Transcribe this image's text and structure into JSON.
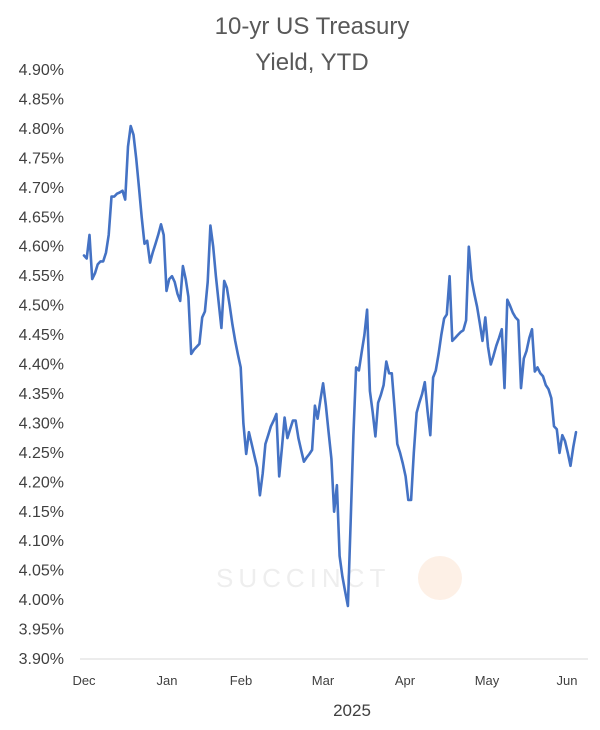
{
  "chart_data": {
    "type": "line",
    "title_line1": "10-yr US Treasury",
    "title_line2": "Yield, YTD",
    "xlabel": "2025",
    "ylabel": "",
    "ylim": [
      3.9,
      4.9
    ],
    "y_ticks": [
      "4.90%",
      "4.85%",
      "4.80%",
      "4.75%",
      "4.70%",
      "4.65%",
      "4.60%",
      "4.55%",
      "4.50%",
      "4.45%",
      "4.40%",
      "4.35%",
      "4.30%",
      "4.25%",
      "4.20%",
      "4.15%",
      "4.10%",
      "4.05%",
      "4.00%",
      "3.95%",
      "3.90%"
    ],
    "x_ticks": [
      "Dec",
      "Jan",
      "Feb",
      "Mar",
      "Apr",
      "May",
      "Jun"
    ],
    "grid": false,
    "watermark": "SUCCINCT",
    "line_color": "#4472C4",
    "series": [
      {
        "values": [
          4.585,
          4.58,
          4.62,
          4.545,
          4.555,
          4.57,
          4.575,
          4.575,
          4.59,
          4.62,
          4.685,
          4.685,
          4.69,
          4.692,
          4.695,
          4.68,
          4.77,
          4.805,
          4.79,
          4.75,
          4.7,
          4.65,
          4.605,
          4.61,
          4.573,
          4.59,
          4.605,
          4.62,
          4.638,
          4.62,
          4.525,
          4.545,
          4.55,
          4.54,
          4.52,
          4.508,
          4.567,
          4.545,
          4.515,
          4.418,
          4.425,
          4.43,
          4.435,
          4.48,
          4.49,
          4.54,
          4.636,
          4.6,
          4.55,
          4.505,
          4.462,
          4.542,
          4.53,
          4.5,
          4.468,
          4.44,
          4.417,
          4.395,
          4.3,
          4.248,
          4.285,
          4.265,
          4.245,
          4.225,
          4.178,
          4.215,
          4.265,
          4.28,
          4.295,
          4.305,
          4.316,
          4.21,
          4.258,
          4.31,
          4.275,
          4.29,
          4.305,
          4.305,
          4.275,
          4.255,
          4.235,
          4.242,
          4.248,
          4.255,
          4.33,
          4.308,
          4.34,
          4.368,
          4.33,
          4.285,
          4.24,
          4.15,
          4.195,
          4.075,
          4.04,
          4.015,
          3.99,
          4.13,
          4.28,
          4.395,
          4.39,
          4.42,
          4.45,
          4.493,
          4.355,
          4.32,
          4.278,
          4.335,
          4.348,
          4.365,
          4.405,
          4.385,
          4.385,
          4.325,
          4.265,
          4.25,
          4.232,
          4.21,
          4.17,
          4.17,
          4.25,
          4.318,
          4.335,
          4.35,
          4.37,
          4.32,
          4.28,
          4.378,
          4.39,
          4.418,
          4.45,
          4.478,
          4.485,
          4.55,
          4.44,
          4.445,
          4.45,
          4.455,
          4.458,
          4.475,
          4.6,
          4.545,
          4.52,
          4.498,
          4.47,
          4.44,
          4.48,
          4.43,
          4.4,
          4.415,
          4.432,
          4.445,
          4.46,
          4.36,
          4.51,
          4.5,
          4.488,
          4.48,
          4.475,
          4.36,
          4.41,
          4.423,
          4.445,
          4.46,
          4.388,
          4.395,
          4.385,
          4.38,
          4.365,
          4.358,
          4.343,
          4.295,
          4.29,
          4.25,
          4.28,
          4.27,
          4.25,
          4.228,
          4.26,
          4.285
        ]
      }
    ]
  }
}
